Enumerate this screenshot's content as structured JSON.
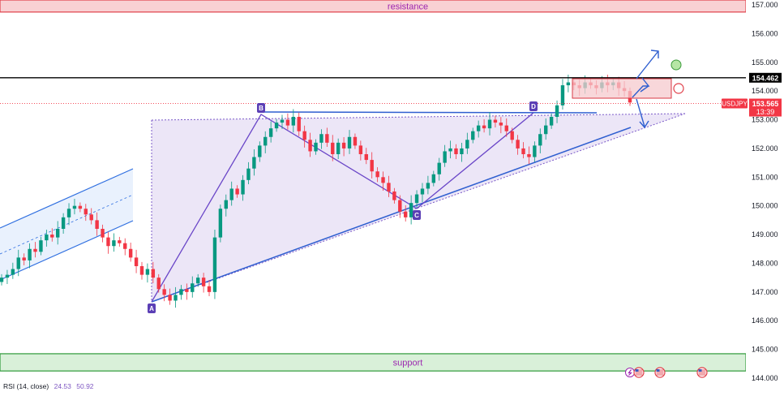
{
  "chart_data": {
    "type": "candlestick",
    "symbol": "USDJPY",
    "ylim": [
      144.0,
      157.2
    ],
    "y_ticks": [
      "157.000",
      "156.000",
      "155.000",
      "154.000",
      "153.000",
      "152.000",
      "151.000",
      "150.000",
      "149.000",
      "148.000",
      "147.000",
      "146.000",
      "145.000",
      "144.000"
    ],
    "last_price": {
      "value": 153.565,
      "label": "153.565",
      "symbol_label": "USDJPY",
      "countdown": "13:39",
      "color": "#f23645"
    },
    "horizontal_line": {
      "value": 154.462,
      "label": "154.462",
      "color": "#000000"
    },
    "zones": {
      "resistance": {
        "label": "resistance",
        "from": 156.75,
        "to": 157.2,
        "fill": "#f9d1d3",
        "border": "#e0404a",
        "text_color": "#9c27b0"
      },
      "support": {
        "label": "support",
        "from": 144.25,
        "to": 144.85,
        "fill": "#d9f0d9",
        "border": "#2e9a3a",
        "text_color": "#9c27b0"
      }
    },
    "points": [
      {
        "label": "A",
        "price": 146.65
      },
      {
        "label": "B",
        "price": 153.1
      },
      {
        "label": "C",
        "price": 149.95
      },
      {
        "label": "D",
        "price": 153.2
      }
    ],
    "candles_close": [
      147.5,
      147.6,
      147.8,
      148.2,
      148.1,
      148.5,
      148.4,
      148.8,
      149.0,
      148.9,
      149.2,
      149.6,
      149.9,
      150.0,
      149.9,
      149.7,
      149.5,
      149.2,
      148.9,
      148.6,
      148.8,
      148.7,
      148.5,
      148.2,
      147.9,
      147.6,
      147.8,
      147.5,
      147.1,
      146.9,
      146.7,
      146.9,
      147.1,
      147.0,
      147.3,
      147.5,
      147.2,
      147.0,
      148.9,
      149.9,
      150.2,
      150.6,
      150.4,
      150.9,
      151.3,
      151.7,
      152.1,
      152.4,
      152.7,
      152.9,
      153.0,
      152.8,
      153.1,
      152.6,
      152.3,
      151.9,
      152.2,
      152.5,
      152.2,
      151.8,
      152.2,
      152.0,
      152.4,
      152.1,
      151.8,
      151.6,
      151.2,
      151.0,
      150.8,
      150.5,
      150.2,
      149.8,
      149.6,
      150.1,
      150.4,
      150.6,
      150.8,
      151.1,
      151.5,
      151.9,
      152.0,
      151.8,
      152.0,
      152.3,
      152.6,
      152.8,
      152.7,
      153.0,
      152.9,
      152.8,
      152.6,
      152.3,
      152.0,
      151.8,
      151.7,
      152.1,
      152.5,
      152.8,
      153.1,
      153.5,
      154.2,
      154.3,
      154.2,
      154.1,
      154.3,
      154.2,
      154.1,
      154.3,
      154.2,
      154.3,
      154.1,
      154.0,
      153.6
    ],
    "annotations": {
      "upper_target_marker": "green-circle",
      "rejection_marker": "red-circle"
    }
  },
  "price_axis": {
    "last_symbol": "USDJPY",
    "last_price": "153.565",
    "countdown": "13:39",
    "line_price": "154.462"
  },
  "indicator": {
    "name": "RSI (14, close)",
    "value1": "24.53",
    "value2": "50.92"
  },
  "events": {
    "icons": [
      "lightning-icon",
      "us-flag-icon",
      "us-flag-icon",
      "us-flag-icon"
    ]
  }
}
